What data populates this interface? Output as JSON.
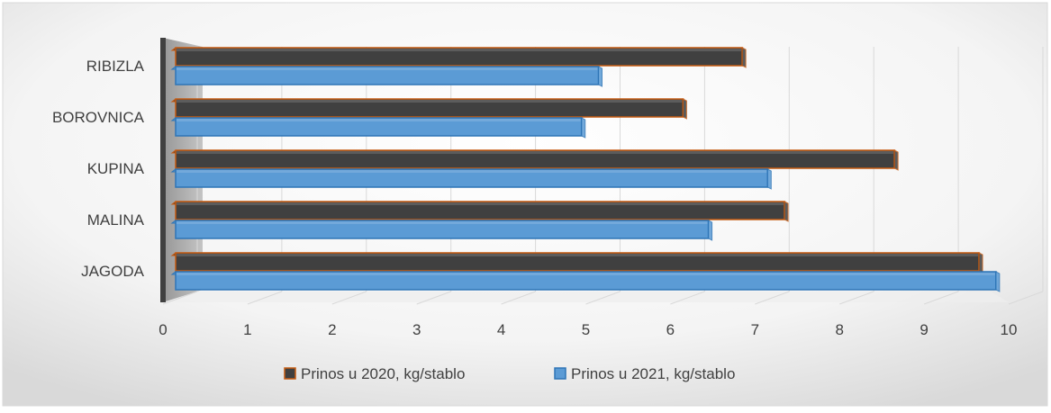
{
  "chart_data": {
    "type": "bar",
    "orientation": "horizontal",
    "style": "3d",
    "categories": [
      "RIBIZLA",
      "BOROVNICA",
      "KUPINA",
      "MALINA",
      "JAGODA"
    ],
    "series": [
      {
        "name": "Prinos  u 2020, kg/stablo",
        "values": [
          6.7,
          6.0,
          8.5,
          7.2,
          9.5
        ],
        "color": "#404040",
        "border": "#c55a11"
      },
      {
        "name": "Prinos  u 2021, kg/stablo",
        "values": [
          5.0,
          4.8,
          7.0,
          6.3,
          9.7
        ],
        "color": "#5b9bd5",
        "border": "#2e75b6"
      }
    ],
    "xlim": [
      0,
      10
    ],
    "xticks": [
      "0",
      "1",
      "2",
      "3",
      "4",
      "5",
      "6",
      "7",
      "8",
      "9",
      "10"
    ],
    "grid": true,
    "legend": "bottom",
    "title": "",
    "xlabel": "",
    "ylabel": ""
  }
}
